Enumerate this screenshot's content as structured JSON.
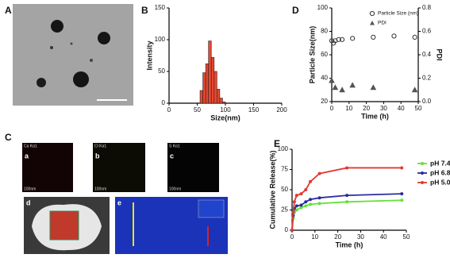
{
  "panels": {
    "letters": [
      "A",
      "B",
      "C",
      "D",
      "E"
    ],
    "sub": [
      "a",
      "b",
      "c",
      "d",
      "e"
    ],
    "map_labels": [
      "Ca Kα1",
      "Cl Kα1",
      "S Kα1"
    ],
    "scale_labels": [
      "100nm",
      "100nm",
      "100nm"
    ]
  },
  "chart_data": [
    {
      "type": "histogram",
      "x_label": "Size(nm)",
      "y_label": "Intensity",
      "bins": [
        55,
        60,
        65,
        70,
        75,
        80,
        85,
        90,
        95,
        100
      ],
      "counts": [
        20,
        48,
        62,
        98,
        72,
        50,
        22,
        8,
        2
      ],
      "color": "#e8472f",
      "xlim": [
        0,
        200
      ],
      "xticks": [
        0,
        50,
        100,
        150,
        200
      ],
      "ylim": [
        0,
        150
      ],
      "yticks": [
        0,
        50,
        100,
        150
      ]
    },
    {
      "type": "scatter",
      "x_label": "Time (h)",
      "y_label": "Particle Size(nm)",
      "y2_label": "PDI",
      "legend": "top-right",
      "series": [
        {
          "name": "Particle Size (nm)",
          "marker": "circle",
          "color": "#333333",
          "x": [
            0,
            1,
            2,
            4,
            6,
            12,
            24,
            36,
            48
          ],
          "values": [
            72,
            70,
            72,
            73,
            73,
            74,
            75,
            76,
            75
          ]
        },
        {
          "name": "PDI",
          "marker": "triangle",
          "color": "#555555",
          "axis": "y2",
          "x": [
            0,
            2,
            6,
            12,
            24,
            48
          ],
          "values": [
            0.18,
            0.12,
            0.1,
            0.14,
            0.12,
            0.1
          ]
        }
      ],
      "xlim": [
        0,
        50
      ],
      "xticks": [
        0,
        10,
        20,
        30,
        40,
        50
      ],
      "ylim": [
        20,
        100
      ],
      "yticks": [
        20,
        40,
        60,
        80,
        100
      ],
      "y2lim": [
        0,
        0.8
      ],
      "y2ticks": [
        {
          "value": 0,
          "label": "0.0"
        },
        0.2,
        0.4,
        0.6,
        0.8
      ]
    },
    {
      "type": "line",
      "x_label": "Time (h)",
      "y_label": "Cumulative Release(%)",
      "legend": "right",
      "x": [
        0,
        0.5,
        1,
        2,
        4,
        6,
        8,
        12,
        24,
        48
      ],
      "series": [
        {
          "name": "pH 7.4",
          "color": "#66e03a",
          "values": [
            0,
            15,
            22,
            25,
            28,
            30,
            32,
            33,
            35,
            37
          ]
        },
        {
          "name": "pH 6.8",
          "color": "#2b2d9c",
          "values": [
            0,
            18,
            27,
            30,
            31,
            35,
            38,
            40,
            43,
            45
          ]
        },
        {
          "name": "pH 5.0",
          "color": "#e03a32",
          "values": [
            0,
            22,
            35,
            43,
            45,
            50,
            60,
            70,
            77,
            77
          ]
        }
      ],
      "xlim": [
        0,
        50
      ],
      "xticks": [
        0,
        10,
        20,
        30,
        40,
        50
      ],
      "ylim": [
        0,
        100
      ],
      "yticks": [
        0,
        25,
        50,
        75,
        100
      ]
    }
  ]
}
